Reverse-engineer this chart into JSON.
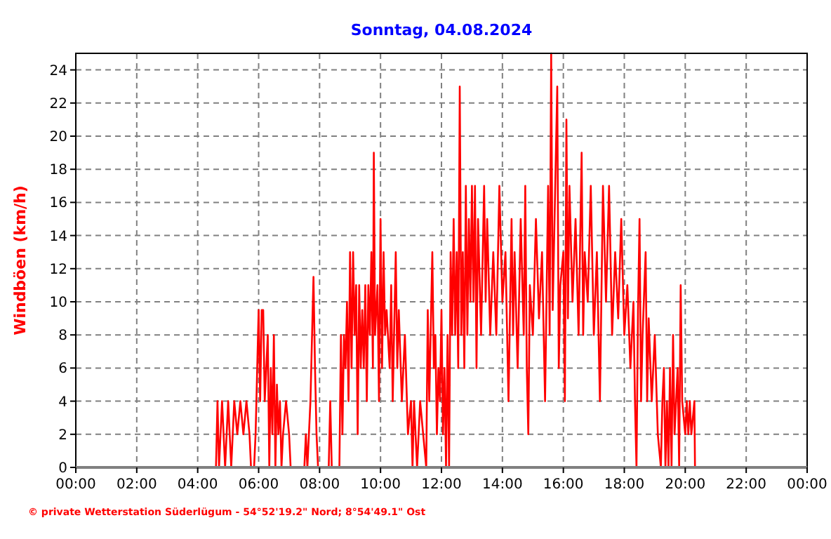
{
  "chart_data": {
    "type": "line",
    "title": "Sonntag, 04.08.2024",
    "ylabel": "Windböen  (km/h)",
    "annotations": [
      "© private Wetterstation Süderlügum - 54°52'19.2\" Nord; 8°54'49.1\" Ost"
    ],
    "xlim": [
      0,
      24
    ],
    "ylim": [
      0,
      25
    ],
    "xticks": [
      {
        "value": 0,
        "label": "00:00"
      },
      {
        "value": 2,
        "label": "02:00"
      },
      {
        "value": 4,
        "label": "04:00"
      },
      {
        "value": 6,
        "label": "06:00"
      },
      {
        "value": 8,
        "label": "08:00"
      },
      {
        "value": 10,
        "label": "10:00"
      },
      {
        "value": 12,
        "label": "12:00"
      },
      {
        "value": 14,
        "label": "14:00"
      },
      {
        "value": 16,
        "label": "16:00"
      },
      {
        "value": 18,
        "label": "18:00"
      },
      {
        "value": 20,
        "label": "20:00"
      },
      {
        "value": 22,
        "label": "22:00"
      },
      {
        "value": 24,
        "label": "00:00"
      }
    ],
    "yticks": [
      0,
      2,
      4,
      6,
      8,
      10,
      12,
      14,
      16,
      18,
      20,
      22,
      24
    ],
    "grid": true,
    "marker": "none",
    "line_style": "solid",
    "series": [
      {
        "color": "#ff0000",
        "x": [
          0,
          4.6,
          4.65,
          4.7,
          4.8,
          4.85,
          4.9,
          5.0,
          5.05,
          5.1,
          5.2,
          5.3,
          5.4,
          5.5,
          5.6,
          5.7,
          5.75,
          5.85,
          5.9,
          6.0,
          6.05,
          6.1,
          6.15,
          6.2,
          6.3,
          6.35,
          6.4,
          6.45,
          6.5,
          6.55,
          6.6,
          6.65,
          6.7,
          6.75,
          6.8,
          6.9,
          7.0,
          7.05,
          7.5,
          7.55,
          7.6,
          7.7,
          7.8,
          7.85,
          7.9,
          7.95,
          8.3,
          8.35,
          8.4,
          8.65,
          8.7,
          8.75,
          8.8,
          8.85,
          8.9,
          8.95,
          9.0,
          9.05,
          9.1,
          9.15,
          9.2,
          9.25,
          9.3,
          9.35,
          9.4,
          9.45,
          9.5,
          9.55,
          9.6,
          9.65,
          9.7,
          9.75,
          9.78,
          9.82,
          9.9,
          9.95,
          10.0,
          10.05,
          10.1,
          10.15,
          10.2,
          10.3,
          10.35,
          10.4,
          10.5,
          10.55,
          10.6,
          10.7,
          10.8,
          10.9,
          11.0,
          11.05,
          11.1,
          11.2,
          11.3,
          11.4,
          11.5,
          11.55,
          11.6,
          11.7,
          11.75,
          11.8,
          11.85,
          11.9,
          11.95,
          12.0,
          12.05,
          12.1,
          12.15,
          12.2,
          12.25,
          12.3,
          12.35,
          12.4,
          12.45,
          12.5,
          12.55,
          12.6,
          12.65,
          12.7,
          12.75,
          12.8,
          12.85,
          12.9,
          12.95,
          13.0,
          13.05,
          13.1,
          13.15,
          13.2,
          13.3,
          13.4,
          13.45,
          13.5,
          13.6,
          13.7,
          13.8,
          13.9,
          14.0,
          14.1,
          14.2,
          14.3,
          14.35,
          14.4,
          14.5,
          14.6,
          14.7,
          14.75,
          14.8,
          14.85,
          14.9,
          15.0,
          15.1,
          15.2,
          15.3,
          15.4,
          15.5,
          15.55,
          15.6,
          15.65,
          15.8,
          15.85,
          15.9,
          16.0,
          16.05,
          16.1,
          16.15,
          16.2,
          16.3,
          16.4,
          16.5,
          16.6,
          16.65,
          16.7,
          16.8,
          16.9,
          17.0,
          17.1,
          17.2,
          17.3,
          17.4,
          17.5,
          17.6,
          17.7,
          17.8,
          17.9,
          18.0,
          18.1,
          18.2,
          18.3,
          18.35,
          18.4,
          18.45,
          18.5,
          18.55,
          18.6,
          18.7,
          18.75,
          18.8,
          18.9,
          19.0,
          19.1,
          19.2,
          19.25,
          19.3,
          19.35,
          19.4,
          19.45,
          19.5,
          19.55,
          19.6,
          19.65,
          19.75,
          19.8,
          19.85,
          19.9,
          20.0,
          20.05,
          20.1,
          20.15,
          20.2,
          20.3,
          20.32,
          24
        ],
        "values": [
          0,
          0,
          4,
          0,
          4,
          2,
          0,
          4,
          2,
          0,
          4,
          2,
          4,
          2,
          4,
          2,
          0,
          0,
          2,
          9.5,
          4,
          9.5,
          9.5,
          4,
          8,
          0,
          6,
          2,
          8,
          0,
          5,
          2,
          4,
          0,
          2,
          4,
          2,
          0,
          0,
          2,
          0,
          4,
          11.5,
          6,
          2,
          0,
          0,
          4,
          0,
          0,
          8,
          2,
          8,
          6,
          10,
          4,
          13,
          6,
          13,
          8,
          11,
          2,
          11,
          6,
          9.5,
          6,
          11,
          4,
          11,
          8,
          13,
          6,
          19,
          8,
          11,
          4,
          15,
          6,
          13,
          8,
          9.5,
          6,
          11,
          4,
          13,
          6,
          9.5,
          4,
          8,
          2,
          4,
          0,
          4,
          0,
          4,
          2,
          0,
          9.5,
          4,
          13,
          6,
          8,
          2,
          6,
          4,
          9.5,
          2,
          6,
          0,
          8,
          0,
          13,
          8,
          15,
          8,
          13,
          6,
          23,
          8,
          13,
          6,
          17,
          8,
          15,
          10,
          17,
          10,
          17,
          6,
          15,
          8,
          17,
          10,
          15,
          8,
          13,
          8,
          17,
          10,
          13,
          4,
          15,
          8,
          13,
          6,
          15,
          8,
          17,
          6,
          2,
          11,
          8,
          15,
          9,
          13,
          4,
          17,
          8,
          25,
          9.5,
          23,
          6,
          11,
          13,
          4,
          21,
          9,
          17,
          10,
          15,
          8,
          19,
          8,
          13,
          10,
          17,
          8,
          13,
          4,
          17,
          10,
          17,
          8,
          13,
          9,
          15,
          8,
          11,
          6,
          10,
          4,
          0,
          9.5,
          15,
          4,
          8,
          13,
          4,
          9,
          4,
          8,
          2,
          0,
          4,
          6,
          0,
          4,
          0,
          6,
          0,
          8,
          2,
          6,
          0,
          11,
          4,
          2,
          4,
          2,
          4,
          2,
          4,
          0,
          0
        ]
      }
    ]
  }
}
